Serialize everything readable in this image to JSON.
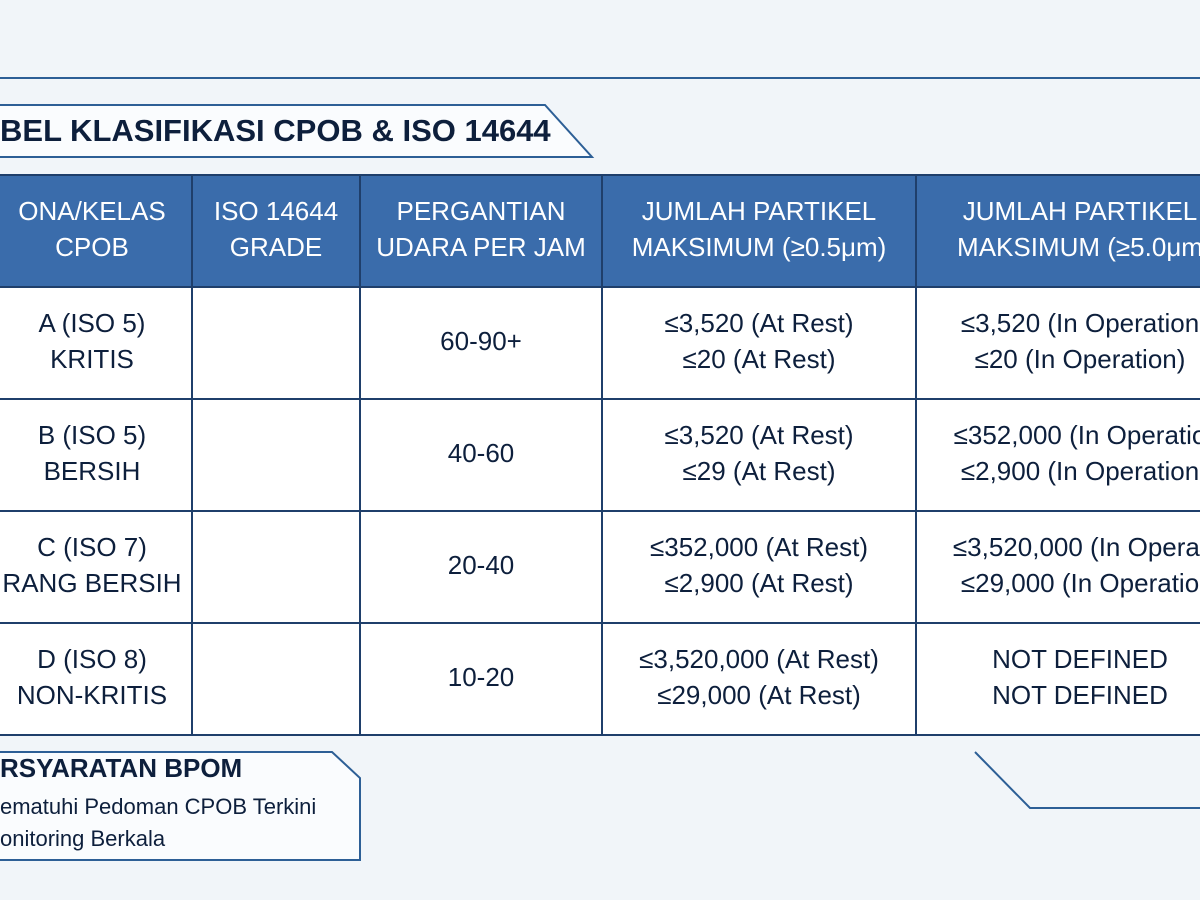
{
  "title": "BEL KLASIFIKASI CPOB & ISO 14644",
  "table": {
    "header": [
      [
        "ONA/KELAS",
        "CPOB"
      ],
      [
        "ISO 14644",
        "GRADE"
      ],
      [
        "PERGANTIAN",
        "UDARA PER JAM"
      ],
      [
        "JUMLAH PARTIKEL",
        "MAKSIMUM (≥0.5μm)"
      ],
      [
        "JUMLAH PARTIKEL",
        "MAKSIMUM (≥5.0μm"
      ]
    ],
    "rows": [
      [
        [
          "A (ISO 5)",
          "KRITIS"
        ],
        [],
        [
          "60-90+"
        ],
        [
          "≤3,520 (At Rest)",
          "≤20 (At Rest)"
        ],
        [
          "≤3,520 (In Operation",
          "≤20 (In Operation)"
        ]
      ],
      [
        [
          "B (ISO 5)",
          "BERSIH"
        ],
        [],
        [
          "40-60"
        ],
        [
          "≤3,520 (At Rest)",
          "≤29 (At Rest)"
        ],
        [
          "≤352,000 (In Operatio",
          "≤2,900 (In Operation"
        ]
      ],
      [
        [
          "C (ISO 7)",
          "RANG BERSIH"
        ],
        [],
        [
          "20-40"
        ],
        [
          "≤352,000 (At Rest)",
          "≤2,900 (At Rest)"
        ],
        [
          "≤3,520,000 (In Operat",
          "≤29,000 (In Operatio"
        ]
      ],
      [
        [
          "D (ISO 8)",
          "NON-KRITIS"
        ],
        [],
        [
          "10-20"
        ],
        [
          "≤3,520,000 (At Rest)",
          "≤29,000 (At Rest)"
        ],
        [
          "NOT DEFINED",
          "NOT DEFINED"
        ]
      ]
    ]
  },
  "requirements": {
    "title": "RSYARATAN BPOM",
    "items": [
      "ematuhi Pedoman CPOB Terkini",
      "onitoring Berkala"
    ]
  }
}
